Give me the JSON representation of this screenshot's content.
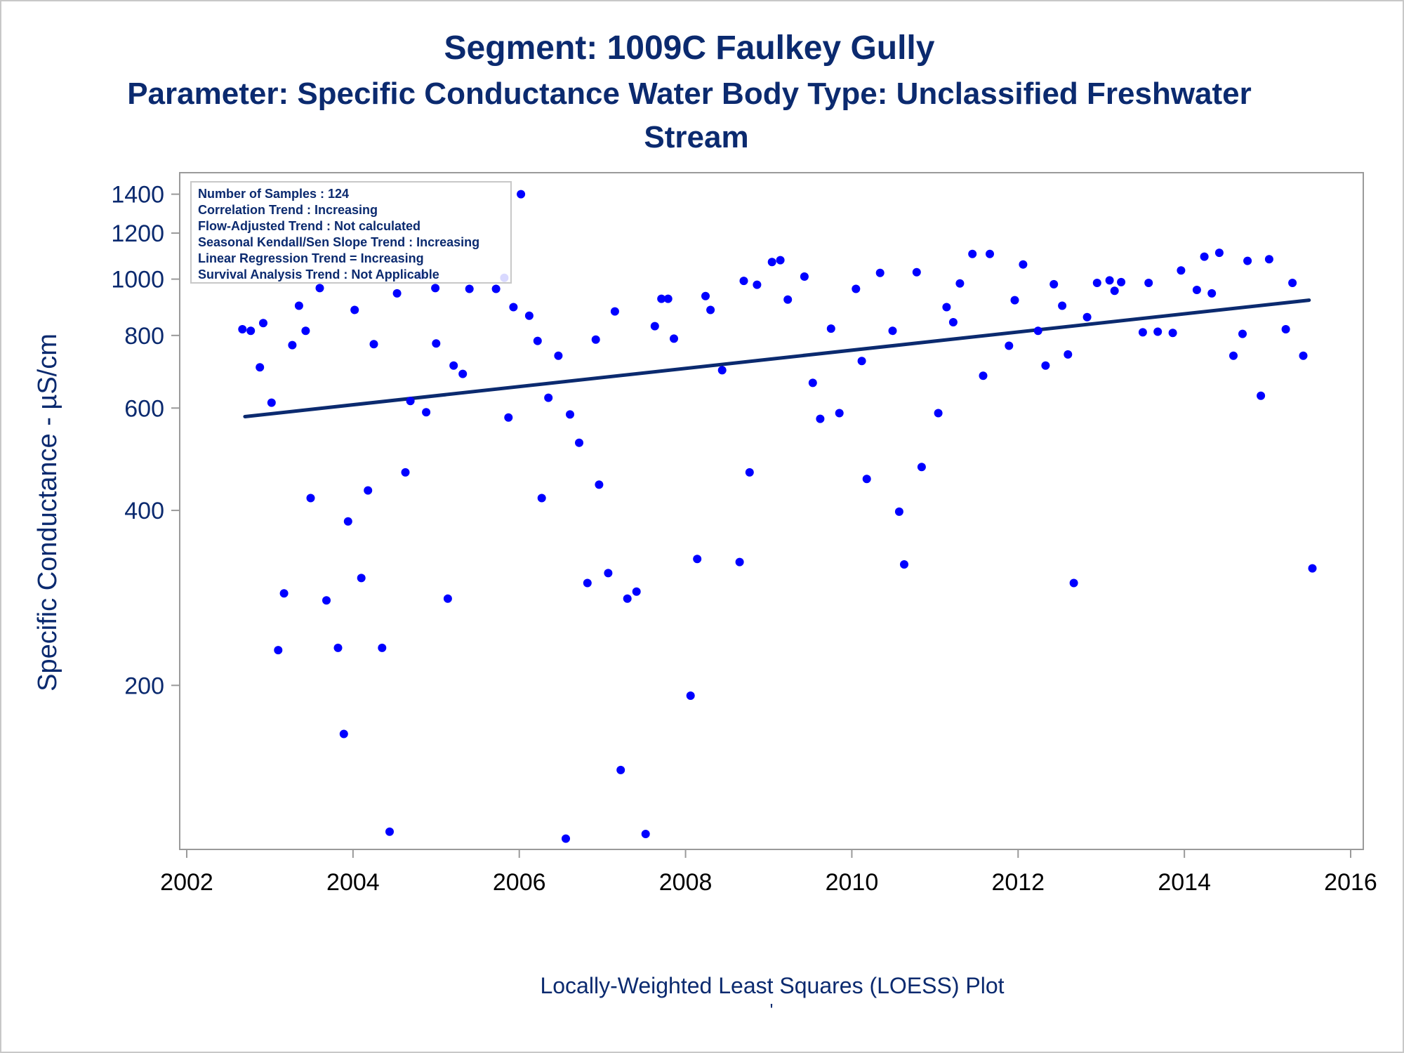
{
  "titles": {
    "line1": "Segment: 1009C  Faulkey Gully",
    "line2": "Parameter: Specific Conductance   Water Body Type: Unclassified Freshwater",
    "line3": "Stream"
  },
  "footnote": "Locally-Weighted Least Squares (LOESS) Plot",
  "footnote_mark": "'",
  "stats_box": [
    "Number of Samples : 124",
    "Correlation Trend : Increasing",
    "Flow-Adjusted Trend : Not calculated",
    "Seasonal Kendall/Sen Slope Trend : Increasing",
    "Linear Regression Trend = Increasing",
    "Survival Analysis Trend : Not Applicable"
  ],
  "colors": {
    "title": "#0b2a6f",
    "points": "#0000ff",
    "trend_line": "#0b2a6f",
    "frame": "#9a9a9a"
  },
  "chart_data": {
    "type": "scatter",
    "title": "Segment: 1009C  Faulkey Gully",
    "xlabel": "",
    "ylabel": "Specific Conductance -  µS/cm",
    "y_scale": "log",
    "xlim": [
      2002,
      2016
    ],
    "ylim": [
      105,
      1450
    ],
    "x_ticks": [
      2002,
      2004,
      2006,
      2008,
      2010,
      2012,
      2014,
      2016
    ],
    "y_ticks": [
      200,
      400,
      600,
      800,
      1000,
      1200,
      1400
    ],
    "grid": false,
    "series": [
      {
        "type": "scatter",
        "points": [
          [
            2002.67,
            820
          ],
          [
            2002.77,
            815
          ],
          [
            2002.88,
            705
          ],
          [
            2002.92,
            840
          ],
          [
            2003.02,
            613
          ],
          [
            2003.1,
            230
          ],
          [
            2003.17,
            288
          ],
          [
            2003.27,
            770
          ],
          [
            2003.35,
            900
          ],
          [
            2003.43,
            815
          ],
          [
            2003.49,
            420
          ],
          [
            2003.6,
            965
          ],
          [
            2003.68,
            280
          ],
          [
            2003.82,
            232
          ],
          [
            2003.89,
            165
          ],
          [
            2003.94,
            383
          ],
          [
            2004.02,
            885
          ],
          [
            2004.1,
            306
          ],
          [
            2004.18,
            433
          ],
          [
            2004.25,
            773
          ],
          [
            2004.35,
            232
          ],
          [
            2004.44,
            112
          ],
          [
            2004.53,
            945
          ],
          [
            2004.63,
            465
          ],
          [
            2004.69,
            617
          ],
          [
            2004.82,
            1015
          ],
          [
            2004.88,
            590
          ],
          [
            2004.99,
            965
          ],
          [
            2005.0,
            775
          ],
          [
            2005.14,
            282
          ],
          [
            2005.21,
            710
          ],
          [
            2005.32,
            687
          ],
          [
            2005.4,
            962
          ],
          [
            2005.72,
            962
          ],
          [
            2005.82,
            1005
          ],
          [
            2005.87,
            578
          ],
          [
            2005.93,
            895
          ],
          [
            2006.02,
            1400
          ],
          [
            2006.12,
            865
          ],
          [
            2006.22,
            783
          ],
          [
            2006.27,
            420
          ],
          [
            2006.35,
            625
          ],
          [
            2006.47,
            738
          ],
          [
            2006.56,
            109
          ],
          [
            2006.61,
            585
          ],
          [
            2006.72,
            523
          ],
          [
            2006.82,
            300
          ],
          [
            2006.92,
            787
          ],
          [
            2006.96,
            443
          ],
          [
            2007.07,
            312
          ],
          [
            2007.15,
            880
          ],
          [
            2007.22,
            143
          ],
          [
            2007.3,
            282
          ],
          [
            2007.41,
            290
          ],
          [
            2007.52,
            111
          ],
          [
            2007.63,
            830
          ],
          [
            2007.71,
            925
          ],
          [
            2007.79,
            925
          ],
          [
            2007.86,
            790
          ],
          [
            2008.06,
            192
          ],
          [
            2008.14,
            330
          ],
          [
            2008.24,
            935
          ],
          [
            2008.3,
            885
          ],
          [
            2008.44,
            697
          ],
          [
            2008.65,
            326
          ],
          [
            2008.7,
            993
          ],
          [
            2008.77,
            465
          ],
          [
            2008.86,
            978
          ],
          [
            2009.04,
            1070
          ],
          [
            2009.14,
            1078
          ],
          [
            2009.23,
            922
          ],
          [
            2009.43,
            1010
          ],
          [
            2009.53,
            663
          ],
          [
            2009.62,
            575
          ],
          [
            2009.75,
            822
          ],
          [
            2009.85,
            588
          ],
          [
            2010.05,
            962
          ],
          [
            2010.12,
            723
          ],
          [
            2010.18,
            453
          ],
          [
            2010.34,
            1025
          ],
          [
            2010.49,
            815
          ],
          [
            2010.57,
            398
          ],
          [
            2010.63,
            323
          ],
          [
            2010.78,
            1028
          ],
          [
            2010.84,
            475
          ],
          [
            2011.04,
            588
          ],
          [
            2011.14,
            895
          ],
          [
            2011.22,
            843
          ],
          [
            2011.3,
            983
          ],
          [
            2011.45,
            1105
          ],
          [
            2011.58,
            682
          ],
          [
            2011.66,
            1105
          ],
          [
            2011.89,
            768
          ],
          [
            2011.96,
            920
          ],
          [
            2012.06,
            1060
          ],
          [
            2012.24,
            815
          ],
          [
            2012.33,
            710
          ],
          [
            2012.43,
            980
          ],
          [
            2012.53,
            900
          ],
          [
            2012.6,
            742
          ],
          [
            2012.67,
            300
          ],
          [
            2012.83,
            860
          ],
          [
            2012.95,
            985
          ],
          [
            2013.1,
            995
          ],
          [
            2013.16,
            955
          ],
          [
            2013.24,
            988
          ],
          [
            2013.5,
            810
          ],
          [
            2013.57,
            985
          ],
          [
            2013.68,
            812
          ],
          [
            2013.86,
            808
          ],
          [
            2013.96,
            1035
          ],
          [
            2014.15,
            958
          ],
          [
            2014.24,
            1093
          ],
          [
            2014.33,
            945
          ],
          [
            2014.42,
            1110
          ],
          [
            2014.59,
            738
          ],
          [
            2014.7,
            805
          ],
          [
            2014.76,
            1075
          ],
          [
            2014.92,
            630
          ],
          [
            2015.02,
            1082
          ],
          [
            2015.22,
            820
          ],
          [
            2015.3,
            985
          ],
          [
            2015.43,
            738
          ],
          [
            2015.54,
            318
          ]
        ]
      },
      {
        "type": "line",
        "points": [
          [
            2002.7,
            580
          ],
          [
            2015.5,
            920
          ]
        ]
      }
    ]
  }
}
